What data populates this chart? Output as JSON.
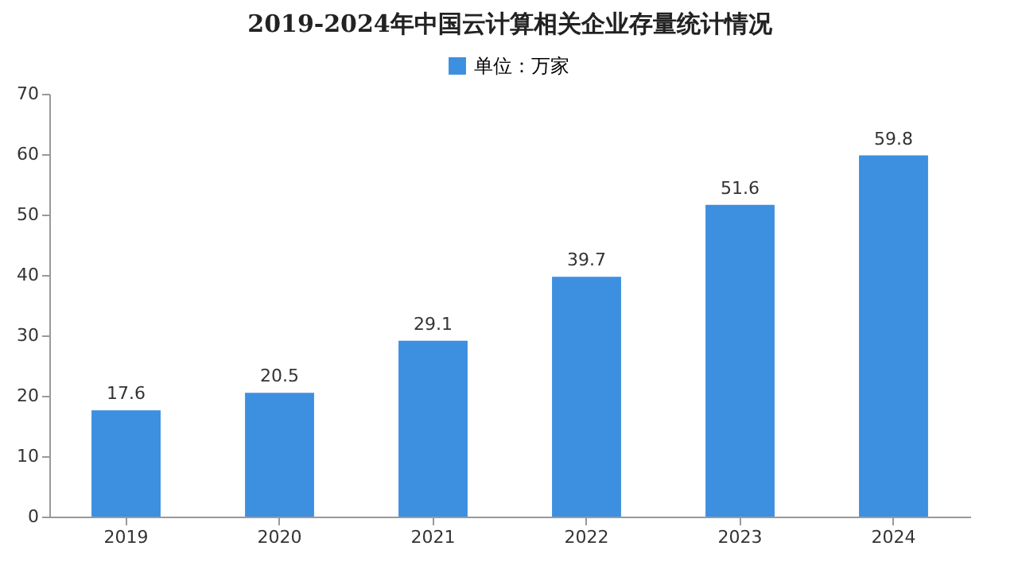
{
  "chart_data": {
    "type": "bar",
    "title": "2019-2024年中国云计算相关企业存量统计情况",
    "categories": [
      "2019",
      "2020",
      "2021",
      "2022",
      "2023",
      "2024"
    ],
    "series": [
      {
        "name": "单位：万家",
        "color": "#3d8fe0",
        "values": [
          17.6,
          20.5,
          29.1,
          39.7,
          51.6,
          59.8
        ]
      }
    ],
    "ylim": [
      0,
      70
    ],
    "yticks": [
      0,
      10,
      20,
      30,
      40,
      50,
      60,
      70
    ],
    "grid": false,
    "legend": "top",
    "data_labels": true
  }
}
